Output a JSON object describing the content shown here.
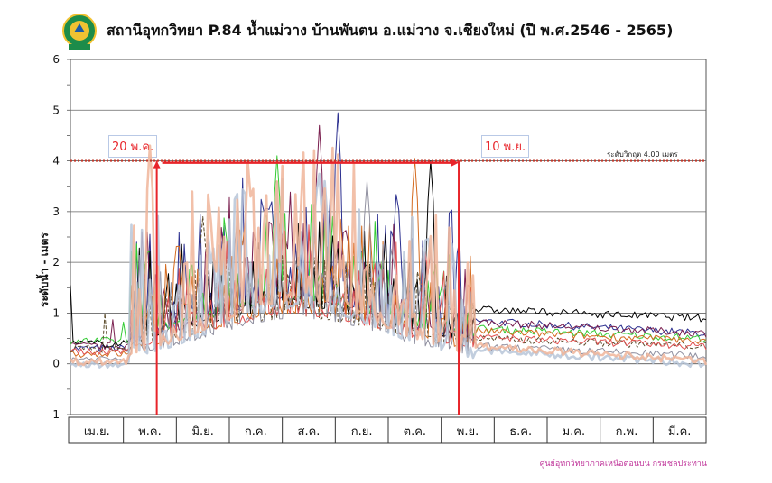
{
  "title": "สถานีอุทกวิทยา P.84 น้ำแม่วาง บ้านพันตน อ.แม่วาง จ.เชียงใหม่ (ปี พ.ศ.2546 - 2565)",
  "ylabel": "ระดับน้ำ - เมตร",
  "credit": "ศูนย์อุทกวิทยาภาคเหนือตอนบน กรมชลประทาน",
  "critical_label": "ระดับวิกฤต 4.00  เมตร",
  "start_tag": "20 พ.ค.",
  "end_tag": "10 พ.ย.",
  "colors": {
    "critical": "#c0392b",
    "window": "#e8242a",
    "tags_text": "#e8242a",
    "credit": "#c0379b"
  },
  "chart_data": {
    "type": "line",
    "title": "สถานีอุทกวิทยา P.84 น้ำแม่วาง บ้านพันตน อ.แม่วาง จ.เชียงใหม่ (ปี พ.ศ.2546 - 2565)",
    "xlabel": "",
    "ylabel": "ระดับน้ำ - เมตร",
    "ylim": [
      -1,
      6
    ],
    "yticks": [
      -1,
      0,
      1,
      2,
      3,
      4,
      5,
      6
    ],
    "grid": true,
    "months": [
      "เม.ย.",
      "พ.ค.",
      "มิ.ย.",
      "ก.ค.",
      "ส.ค.",
      "ก.ย.",
      "ต.ค.",
      "พ.ย.",
      "ธ.ค.",
      "ม.ค.",
      "ก.พ.",
      "มี.ค."
    ],
    "critical_level": 4.0,
    "window_start": "20 พ.ค.",
    "window_end": "10 พ.ย.",
    "series": [
      {
        "color": "#2b2f8f",
        "peak_month": 5.05,
        "peak": 4.95,
        "base": 0.3,
        "tail": 0.6,
        "season": 1.0
      },
      {
        "color": "#7a1f4f",
        "peak_month": 4.7,
        "peak": 4.7,
        "base": 0.35,
        "tail": 0.6,
        "season": 0.9
      },
      {
        "color": "#33cc33",
        "peak_month": 3.9,
        "peak": 4.1,
        "base": 0.45,
        "tail": 0.5,
        "season": 0.8
      },
      {
        "color": "#000000",
        "peak_month": 6.8,
        "peak": 4.0,
        "base": 0.4,
        "tail": 0.9,
        "season": 0.7
      },
      {
        "color": "#d46a1e",
        "peak_month": 6.5,
        "peak": 4.05,
        "base": 0.2,
        "tail": 0.45,
        "season": 0.8
      },
      {
        "color": "#5a4a2a",
        "peak_month": 2.5,
        "peak": 2.9,
        "base": 0.3,
        "tail": 0.35,
        "season": 0.6
      },
      {
        "color": "#e05050",
        "peak_month": 6.7,
        "peak": 2.2,
        "base": 0.25,
        "tail": 0.35,
        "season": 0.7
      },
      {
        "color": "#9090a0",
        "peak_month": 5.6,
        "peak": 3.6,
        "base": 0.1,
        "tail": 0.15,
        "season": 0.8
      },
      {
        "color": "#b7c6d8",
        "peak_month": 4.8,
        "peak": 3.6,
        "base": 0.0,
        "tail": 0.0,
        "season": 1.1
      },
      {
        "color": "#f0b59a",
        "peak_month": 1.5,
        "peak": 4.3,
        "base": 0.05,
        "tail": 0.05,
        "season": 1.2
      }
    ]
  },
  "footer_note": ""
}
